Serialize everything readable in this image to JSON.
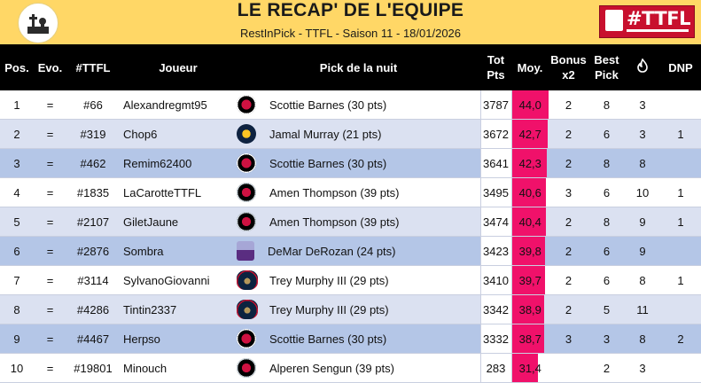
{
  "header": {
    "title": "LE RECAP' DE L'EQUIPE",
    "subtitle": "RestInPick - TTFL - Saison 11 - 18/01/2026",
    "right_logo_text": "#TTFL"
  },
  "colors": {
    "header_bg": "#ffd766",
    "moy_bar": "#f0116a",
    "row_even": "#dbe1f1",
    "row_highlight": "#b4c6e7"
  },
  "table": {
    "columns": {
      "pos": "Pos.",
      "evo": "Evo.",
      "ttfl": "#TTFL",
      "player": "Joueur",
      "pick": "Pick de la nuit",
      "tot": "Tot Pts",
      "moy": "Moy.",
      "bonus": "Bonus x2",
      "best": "Best Pick",
      "icon": "flame-icon",
      "dnp": "DNP"
    },
    "rows": [
      {
        "pos": "1",
        "evo": "=",
        "ttfl": "#66",
        "player": "Alexandregmt95",
        "team_icon": "raptors-logo-icon",
        "pick": "Scottie Barnes (30 pts)",
        "tot": "3787",
        "moy": "44,0",
        "moy_level": 1.0,
        "bonus": "2",
        "best": "8",
        "icon_val": "3",
        "dnp": "",
        "style": "odd"
      },
      {
        "pos": "2",
        "evo": "=",
        "ttfl": "#319",
        "player": "Chop6",
        "team_icon": "nuggets-logo-icon",
        "pick": "Jamal Murray (21 pts)",
        "tot": "3672",
        "moy": "42,7",
        "moy_level": 0.97,
        "bonus": "2",
        "best": "6",
        "icon_val": "3",
        "dnp": "1",
        "style": "even"
      },
      {
        "pos": "3",
        "evo": "=",
        "ttfl": "#462",
        "player": "Remim62400",
        "team_icon": "raptors-logo-icon",
        "pick": "Scottie Barnes (30 pts)",
        "tot": "3641",
        "moy": "42,3",
        "moy_level": 0.96,
        "bonus": "2",
        "best": "8",
        "icon_val": "8",
        "dnp": "",
        "style": "hl"
      },
      {
        "pos": "4",
        "evo": "=",
        "ttfl": "#1835",
        "player": "LaCarotteTTFL",
        "team_icon": "rockets-logo-icon",
        "pick": "Amen Thompson (39 pts)",
        "tot": "3495",
        "moy": "40,6",
        "moy_level": 0.92,
        "bonus": "3",
        "best": "6",
        "icon_val": "10",
        "dnp": "1",
        "style": "odd"
      },
      {
        "pos": "5",
        "evo": "=",
        "ttfl": "#2107",
        "player": "GiletJaune",
        "team_icon": "rockets-logo-icon",
        "pick": "Amen Thompson (39 pts)",
        "tot": "3474",
        "moy": "40,4",
        "moy_level": 0.92,
        "bonus": "2",
        "best": "8",
        "icon_val": "9",
        "dnp": "1",
        "style": "even"
      },
      {
        "pos": "6",
        "evo": "=",
        "ttfl": "#2876",
        "player": "Sombra",
        "team_icon": "kings-logo-icon",
        "pick": "DeMar DeRozan (24 pts)",
        "tot": "3423",
        "moy": "39,8",
        "moy_level": 0.9,
        "bonus": "2",
        "best": "6",
        "icon_val": "9",
        "dnp": "",
        "style": "hl"
      },
      {
        "pos": "7",
        "evo": "=",
        "ttfl": "#3114",
        "player": "SylvanoGiovanni",
        "team_icon": "pelicans-logo-icon",
        "pick": "Trey Murphy III (29 pts)",
        "tot": "3410",
        "moy": "39,7",
        "moy_level": 0.9,
        "bonus": "2",
        "best": "6",
        "icon_val": "8",
        "dnp": "1",
        "style": "odd"
      },
      {
        "pos": "8",
        "evo": "=",
        "ttfl": "#4286",
        "player": "Tintin2337",
        "team_icon": "pelicans-logo-icon",
        "pick": "Trey Murphy III (29 pts)",
        "tot": "3342",
        "moy": "38,9",
        "moy_level": 0.88,
        "bonus": "2",
        "best": "5",
        "icon_val": "11",
        "dnp": "",
        "style": "even"
      },
      {
        "pos": "9",
        "evo": "=",
        "ttfl": "#4467",
        "player": "Herpso",
        "team_icon": "raptors-logo-icon",
        "pick": "Scottie Barnes (30 pts)",
        "tot": "3332",
        "moy": "38,7",
        "moy_level": 0.88,
        "bonus": "3",
        "best": "3",
        "icon_val": "8",
        "dnp": "2",
        "style": "hl"
      },
      {
        "pos": "10",
        "evo": "=",
        "ttfl": "#19801",
        "player": "Minouch",
        "team_icon": "rockets-logo-icon",
        "pick": "Alperen Sengun (39 pts)",
        "tot": "283",
        "moy": "31,4",
        "moy_level": 0.71,
        "bonus": "",
        "best": "2",
        "icon_val": "3",
        "dnp": "",
        "style": "odd"
      }
    ]
  }
}
